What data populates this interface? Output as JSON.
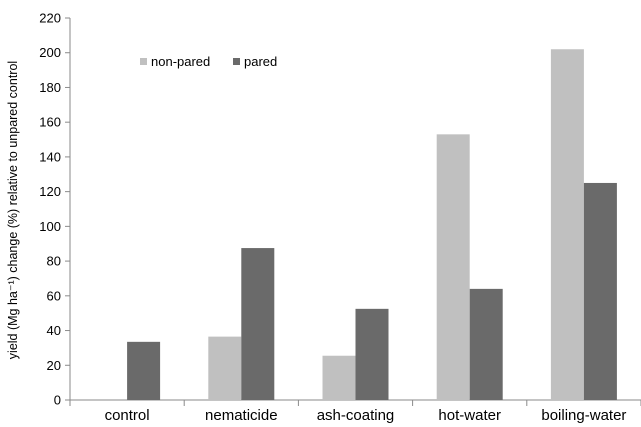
{
  "chart_data": {
    "type": "bar",
    "ylabel": "yield (Mg ha⁻¹) change (%) relative to unpared control",
    "xlabel": "",
    "ylim": [
      0,
      220
    ],
    "yticks": [
      0,
      20,
      40,
      60,
      80,
      100,
      120,
      140,
      160,
      180,
      200,
      220
    ],
    "categories": [
      "control",
      "nematicide",
      "ash-coating",
      "hot-water",
      "boiling-water"
    ],
    "series": [
      {
        "name": "non-pared",
        "color": "#c0c0c0",
        "values": [
          0,
          36.5,
          25.5,
          153,
          202
        ]
      },
      {
        "name": "pared",
        "color": "#6a6a6a",
        "values": [
          33.5,
          87.5,
          52.5,
          64,
          125
        ]
      }
    ],
    "legend": "top-left",
    "grid": false
  }
}
